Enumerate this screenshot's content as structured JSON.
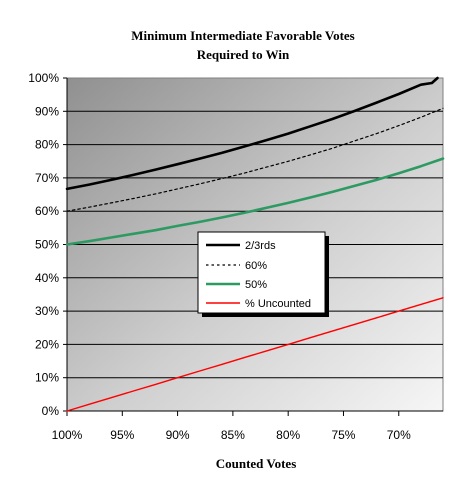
{
  "chart_data": {
    "type": "line",
    "title": [
      "Minimum Intermediate Favorable Votes",
      "Required to Win"
    ],
    "xlabel": "Counted Votes",
    "ylabel": "",
    "x_axis": {
      "direction": "decreasing",
      "range": [
        100,
        66
      ],
      "tick_values": [
        100,
        95,
        90,
        85,
        80,
        75,
        70
      ],
      "tick_labels": [
        "100%",
        "95%",
        "90%",
        "85%",
        "80%",
        "75%",
        "70%"
      ]
    },
    "y_axis": {
      "range": [
        0,
        100
      ],
      "tick_values": [
        0,
        10,
        20,
        30,
        40,
        50,
        60,
        70,
        80,
        90,
        100
      ],
      "tick_labels": [
        "0%",
        "10%",
        "20%",
        "30%",
        "40%",
        "50%",
        "60%",
        "70%",
        "80%",
        "90%",
        "100%"
      ]
    },
    "grid": "horizontal",
    "plot_background": "gradient-gray",
    "legend_position": "center",
    "series": [
      {
        "name": "2/3rds",
        "color": "#000000",
        "style": "solid-thick",
        "x": [
          100,
          98,
          96,
          94,
          92,
          90,
          88,
          86,
          84,
          82,
          80,
          78,
          76,
          74,
          72,
          70,
          68,
          67,
          66.5
        ],
        "y": [
          66.7,
          68.0,
          69.4,
          70.9,
          72.5,
          74.1,
          75.8,
          77.5,
          79.4,
          81.3,
          83.3,
          85.5,
          87.7,
          90.1,
          92.6,
          95.2,
          98.0,
          98.5,
          100
        ]
      },
      {
        "name": "60%",
        "color": "#000000",
        "style": "dotted",
        "x": [
          100,
          98,
          96,
          94,
          92,
          90,
          88,
          86,
          84,
          82,
          80,
          78,
          76,
          74,
          72,
          70,
          68,
          66
        ],
        "y": [
          60.0,
          61.2,
          62.5,
          63.8,
          65.2,
          66.7,
          68.2,
          69.8,
          71.4,
          73.2,
          75.0,
          76.9,
          78.9,
          81.1,
          83.3,
          85.7,
          88.2,
          90.9
        ]
      },
      {
        "name": "50%",
        "color": "#2e9a63",
        "style": "solid-thick",
        "x": [
          100,
          98,
          96,
          94,
          92,
          90,
          88,
          86,
          84,
          82,
          80,
          78,
          76,
          74,
          72,
          70,
          68,
          66
        ],
        "y": [
          50.0,
          51.0,
          52.1,
          53.2,
          54.3,
          55.6,
          56.8,
          58.1,
          59.5,
          61.0,
          62.5,
          64.1,
          65.8,
          67.6,
          69.4,
          71.4,
          73.5,
          75.8
        ]
      },
      {
        "name": "% Uncounted",
        "color": "#ff0000",
        "style": "solid",
        "x": [
          100,
          98,
          96,
          94,
          92,
          90,
          88,
          86,
          84,
          82,
          80,
          78,
          76,
          74,
          72,
          70,
          68,
          66
        ],
        "y": [
          0,
          2,
          4,
          6,
          8,
          10,
          12,
          14,
          16,
          18,
          20,
          22,
          24,
          26,
          28,
          30,
          32,
          34
        ]
      }
    ]
  }
}
